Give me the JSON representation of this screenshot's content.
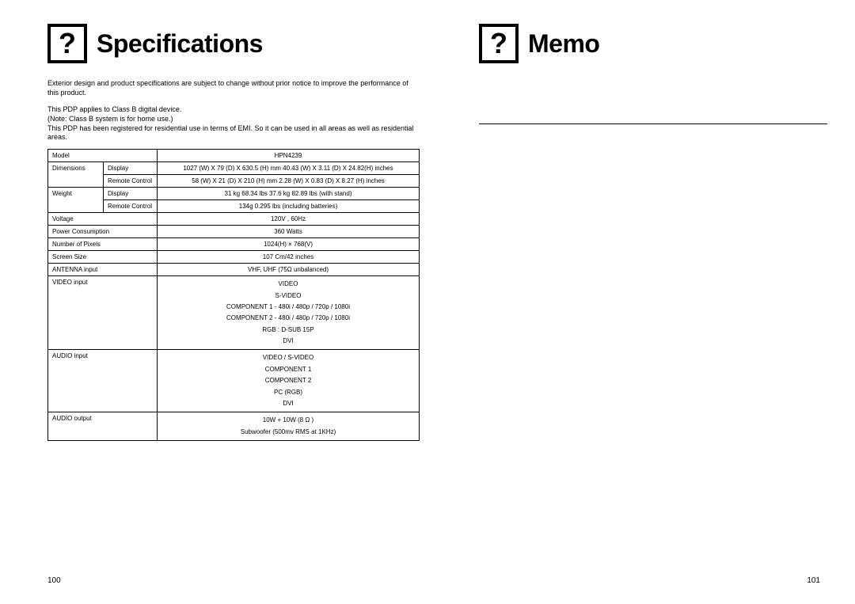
{
  "left": {
    "heading": "Specifications",
    "icon_glyph": "?",
    "intro": "Exterior design and product specifications are subject to change without prior notice to improve the performance of this product.",
    "class_line1": "This PDP applies to Class B digital device.",
    "class_line2": "(Note: Class B system is for home use.)",
    "class_line3": "This PDP has been registered for residential use in terms of EMI. So it can be used in all areas as well as residential areas.",
    "table": {
      "model_label": "Model",
      "model_value": "HPN4239",
      "dimensions_label": "Dimensions",
      "dim_display_label": "Display",
      "dim_display_value": "1027 (W) X 79 (D) X 630.5 (H) mm   40.43 (W) X 3.11 (D) X 24.82(H) inches",
      "dim_remote_label": "Remote Control",
      "dim_remote_value": "58 (W) X 21 (D) X 210 (H) mm   2.28 (W) X 0.83 (D) X 8.27 (H) inches",
      "weight_label": "Weight",
      "weight_display_label": "Display",
      "weight_display_value": "31 kg   68.34 lbs  37.6 kg    82.89 lbs (with stand)",
      "weight_remote_label": "Remote Control",
      "weight_remote_value": "134g   0.295 lbs (including batteries)",
      "voltage_label": "Voltage",
      "voltage_value": "120V  , 60Hz",
      "power_label": "Power Consumption",
      "power_value": "360 Watts",
      "pixels_label": "Number of Pixels",
      "pixels_value": "1024(H) × 768(V)",
      "screen_label": "Screen Size",
      "screen_value": "107 Cm/42 inches",
      "antenna_label": "ANTENNA input",
      "antenna_value": "VHF, UHF (75Ω  unbalanced)",
      "video_label": "VIDEO input",
      "video_v1": "VIDEO",
      "video_v2": "S-VIDEO",
      "video_v3": "COMPONENT 1 - 480i / 480p / 720p / 1080i",
      "video_v4": "COMPONENT 2 - 480i / 480p / 720p / 1080i",
      "video_v5": "RGB : D-SUB 15P",
      "video_v6": "DVI",
      "audio_in_label": "AUDIO input",
      "audio_in_v1": "VIDEO / S-VIDEO",
      "audio_in_v2": "COMPONENT 1",
      "audio_in_v3": "COMPONENT 2",
      "audio_in_v4": "PC (RGB)",
      "audio_in_v5": "DVI",
      "audio_out_label": "AUDIO output",
      "audio_out_v1": "10W + 10W (8 Ω )",
      "audio_out_v2": "Subwoofer (500mv RMS at 1KHz)"
    },
    "page_num": "100"
  },
  "right": {
    "heading": "Memo",
    "icon_glyph": "?",
    "page_num": "101"
  }
}
